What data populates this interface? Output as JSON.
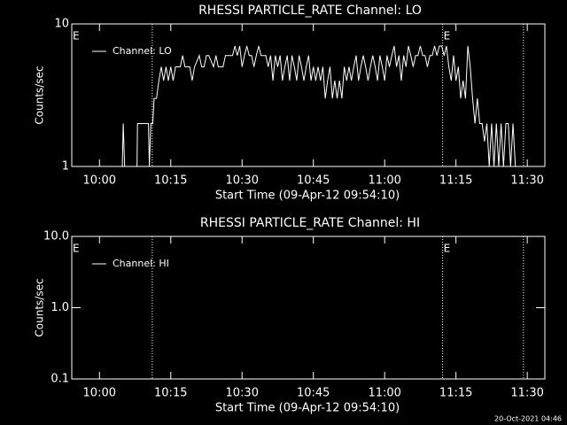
{
  "chart_data": [
    {
      "type": "line",
      "title": "RHESSI PARTICLE_RATE Channel: LO",
      "x_label": "Start Time (09-Apr-12 09:54:10)",
      "y_label": "Counts/sec",
      "log_y": true,
      "legend": "upper left",
      "xlim": [
        594.17,
        693.7
      ],
      "ylim": [
        1,
        10
      ],
      "xticks": [
        {
          "value": 600,
          "label": "10:00"
        },
        {
          "value": 615,
          "label": "10:15"
        },
        {
          "value": 630,
          "label": "10:30"
        },
        {
          "value": 645,
          "label": "10:45"
        },
        {
          "value": 660,
          "label": "11:00"
        },
        {
          "value": 675,
          "label": "11:15"
        },
        {
          "value": 690,
          "label": "11:30"
        }
      ],
      "yticks": [
        1,
        10
      ],
      "vlines": [
        611.1,
        672.2,
        689.2
      ],
      "annotations": [
        {
          "text": "E",
          "x": 594.17
        },
        {
          "text": "E",
          "x": 672.2
        }
      ],
      "series": [
        {
          "name": "Channel: LO",
          "color": "#ffffff",
          "x": [
            594.5,
            604.8,
            605.0,
            605.3,
            607.9,
            608.0,
            610.3,
            610.5,
            610.8,
            611.2,
            611.5,
            612.0,
            612.5,
            613.0,
            613.5,
            614.0,
            614.5,
            615.0,
            615.5,
            616.0,
            617,
            617.5,
            618,
            619,
            619.5,
            620,
            621,
            621.5,
            622,
            622.5,
            623,
            624,
            624.5,
            625,
            626,
            626.5,
            627,
            628,
            628.5,
            629,
            629.5,
            630,
            630.5,
            631,
            631.5,
            632,
            632.5,
            633,
            633.5,
            634,
            635,
            635.5,
            636,
            636.5,
            637,
            637.5,
            638,
            638.5,
            639,
            639.5,
            640,
            640.5,
            641,
            641.5,
            642,
            642.5,
            643,
            643.5,
            644,
            644.5,
            645,
            645.5,
            646,
            646.5,
            647,
            647.5,
            648,
            648.5,
            649,
            649.5,
            650,
            650.5,
            651,
            651.5,
            652,
            652.5,
            653,
            653.5,
            654,
            654.5,
            655,
            655.5,
            656,
            656.5,
            657,
            657.5,
            658,
            658.5,
            659,
            659.5,
            660,
            660.5,
            661,
            661.5,
            662,
            662.5,
            663,
            663.5,
            664,
            664.5,
            665,
            665.5,
            666,
            666.5,
            667,
            667.5,
            668,
            668.5,
            669,
            669.5,
            670,
            670.5,
            671,
            671.5,
            672,
            672.5,
            673,
            673.5,
            674,
            674.5,
            675,
            675.5,
            676,
            676.5,
            677,
            677.5,
            678,
            678.5,
            679,
            679.5,
            680,
            680.5,
            681,
            681.5,
            682,
            682.5,
            683,
            683.5,
            684,
            684.5,
            685,
            685.5,
            686,
            686.5,
            687,
            687.5,
            693.5
          ],
          "values": [
            1,
            1,
            2,
            1,
            1,
            2,
            2,
            1,
            2,
            2,
            3,
            3,
            4,
            5,
            4,
            5,
            4,
            5,
            4,
            5,
            5,
            6,
            5,
            5,
            4,
            5,
            6,
            5,
            5,
            6,
            6,
            5,
            6,
            5,
            5,
            6,
            6,
            6,
            7,
            6,
            7,
            5,
            6,
            7,
            6,
            6,
            5,
            6,
            7,
            6,
            6,
            5,
            6,
            4,
            6,
            5,
            6,
            4,
            5,
            6,
            4,
            6,
            5,
            4,
            6,
            5,
            4,
            5,
            6,
            4,
            5,
            4,
            5,
            4,
            5,
            3,
            4,
            5,
            3,
            4,
            3,
            4,
            3,
            5,
            4,
            5,
            4,
            5,
            6,
            4,
            5,
            6,
            5,
            4,
            5,
            6,
            5,
            4,
            6,
            5,
            4,
            6,
            5,
            6,
            7,
            5,
            6,
            4,
            6,
            5,
            7,
            6,
            5,
            6,
            6,
            7,
            6,
            6,
            5,
            6,
            6,
            7,
            6,
            7,
            7,
            6,
            7,
            5,
            4,
            6,
            4,
            5,
            3,
            4,
            3,
            7,
            5,
            3,
            2,
            3,
            2,
            2,
            1.5,
            2,
            1,
            2,
            1,
            2,
            1,
            2,
            1,
            2,
            2,
            1,
            2,
            1,
            1
          ]
        }
      ]
    },
    {
      "type": "line",
      "title": "RHESSI PARTICLE_RATE Channel: HI",
      "x_label": "Start Time (09-Apr-12 09:54:10)",
      "y_label": "Counts/sec",
      "log_y": true,
      "legend": "upper left",
      "xlim": [
        594.17,
        693.7
      ],
      "ylim": [
        0.1,
        10
      ],
      "xticks": [
        {
          "value": 600,
          "label": "10:00"
        },
        {
          "value": 615,
          "label": "10:15"
        },
        {
          "value": 630,
          "label": "10:30"
        },
        {
          "value": 645,
          "label": "10:45"
        },
        {
          "value": 660,
          "label": "11:00"
        },
        {
          "value": 675,
          "label": "11:15"
        },
        {
          "value": 690,
          "label": "11:30"
        }
      ],
      "yticks": [
        {
          "value": 0.1,
          "label": "0.1"
        },
        {
          "value": 1,
          "label": "1.0"
        },
        {
          "value": 10,
          "label": "10.0"
        }
      ],
      "vlines": [
        611.1,
        672.2,
        689.2
      ],
      "annotations": [
        {
          "text": "E",
          "x": 594.17
        },
        {
          "text": "E",
          "x": 672.2
        }
      ],
      "series": [
        {
          "name": "Channel: HI",
          "color": "#ffffff",
          "x": [],
          "values": []
        }
      ]
    }
  ],
  "footer": "20-Oct-2021 04:46"
}
